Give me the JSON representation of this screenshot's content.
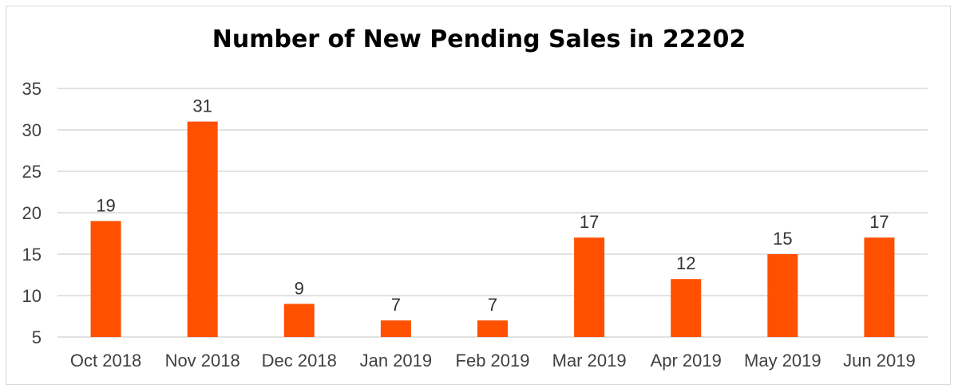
{
  "chart_data": {
    "type": "bar",
    "title": "Number of New Pending Sales in 22202",
    "categories": [
      "Oct 2018",
      "Nov 2018",
      "Dec 2018",
      "Jan 2019",
      "Feb 2019",
      "Mar 2019",
      "Apr 2019",
      "May 2019",
      "Jun 2019"
    ],
    "values": [
      19,
      31,
      9,
      7,
      7,
      17,
      12,
      15,
      17
    ],
    "data_labels": [
      "19",
      "31",
      "9",
      "7",
      "7",
      "17",
      "12",
      "15",
      "17"
    ],
    "yticks": [
      "5",
      "10",
      "15",
      "20",
      "25",
      "30",
      "35"
    ],
    "ylim": [
      5,
      35
    ],
    "xlabel": "",
    "ylabel": "",
    "grid": "horizontal",
    "legend": "none",
    "bar_color": "#FF5000",
    "grid_color": "#d9d9d9"
  }
}
